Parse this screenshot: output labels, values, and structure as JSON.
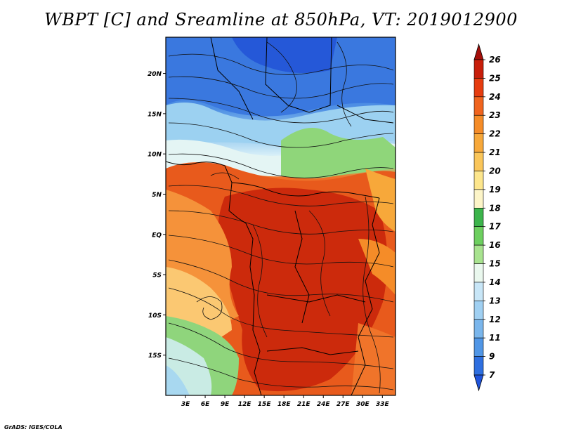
{
  "header": {
    "title": "WBPT [C] and Sreamline at 850hPa, VT: 2019012900"
  },
  "footer": {
    "credit": "GrADS: IGES/COLA"
  },
  "map": {
    "variable": "WBPT",
    "level": "850hPa",
    "valid_time": "2019012900",
    "lon_ticks": [
      "3E",
      "6E",
      "9E",
      "12E",
      "15E",
      "18E",
      "21E",
      "24E",
      "27E",
      "30E",
      "33E"
    ],
    "lon_values": [
      3,
      6,
      9,
      12,
      15,
      18,
      21,
      24,
      27,
      30,
      33
    ],
    "lat_ticks": [
      "20N",
      "15N",
      "10N",
      "5N",
      "EQ",
      "5S",
      "10S",
      "15S"
    ],
    "lat_values": [
      20,
      15,
      10,
      5,
      0,
      -5,
      -10,
      -15
    ]
  },
  "colorbar": {
    "labels": [
      "26",
      "25",
      "24",
      "23",
      "22",
      "21",
      "20",
      "19",
      "18",
      "17",
      "16",
      "15",
      "14",
      "13",
      "12",
      "11",
      "9",
      "7"
    ],
    "colors": [
      "#a50f0a",
      "#c81e0a",
      "#e63c0f",
      "#f0641e",
      "#f58c28",
      "#f7a83a",
      "#fac65a",
      "#fde68c",
      "#fdf5c8",
      "#3cb44b",
      "#6dcf5f",
      "#a8e38f",
      "#eaf8ee",
      "#c8e6f7",
      "#a0d0f2",
      "#7ab6ec",
      "#5096e6",
      "#2e6fe0",
      "#1f54dc"
    ]
  }
}
